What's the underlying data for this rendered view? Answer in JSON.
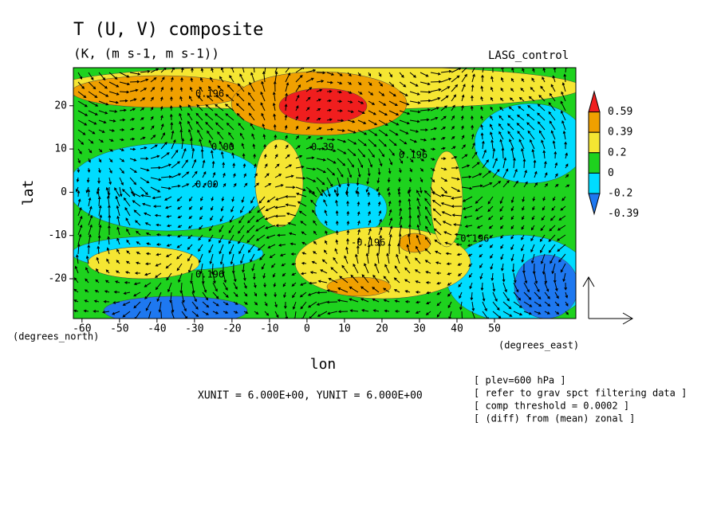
{
  "chart_data": {
    "type": "contour",
    "title": "T (U, V) composite",
    "subtitle": "(K, (m s-1, m s-1))",
    "label": "LASG_control",
    "xlabel": "lon",
    "ylabel": "lat",
    "x_unit": "(degrees_east)",
    "y_unit": "(degrees_north)",
    "xlim": [
      -62.3,
      71.7
    ],
    "ylim": [
      -29.2,
      28.8
    ],
    "xticks": [
      -60,
      -50,
      -40,
      -30,
      -20,
      -10,
      0,
      10,
      20,
      30,
      40,
      50
    ],
    "yticks": [
      -20,
      -10,
      0,
      10,
      20
    ],
    "levels": [
      -0.39,
      -0.2,
      0,
      0.2,
      0.39,
      0.59
    ],
    "level_colors": [
      "#1e78f0",
      "#00dcff",
      "#1ed21e",
      "#f5e632",
      "#f0a000",
      "#f01e1e",
      "#1e3cff"
    ],
    "contour_labels": [
      "0.196",
      "0.00",
      "0.39",
      "0.196",
      "-0.196",
      "0.00",
      "0.196",
      "-0.196"
    ],
    "vector_units": "XUNIT = 6.000E+00, YUNIT = 6.000E+00",
    "notes": [
      "[ plev=600 hPa ]",
      "[ refer to grav spct filtering data ]",
      "[ comp threshold = 0.0002 ]",
      "[ (diff) from (mean) zonal ]"
    ]
  }
}
